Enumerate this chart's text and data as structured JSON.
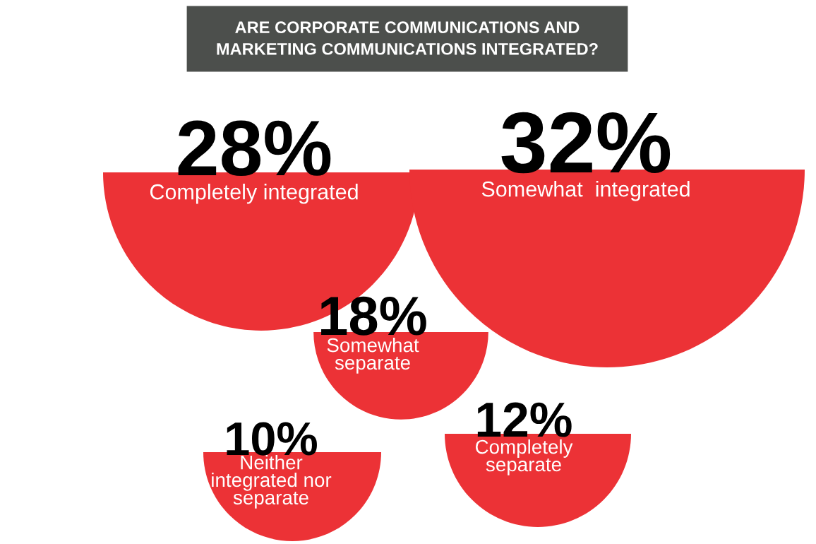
{
  "chart_data": {
    "type": "other",
    "title": "ARE CORPORATE COMMUNICATIONS AND\nMARKETING COMMUNICATIONS INTEGRATED?",
    "categories": [
      "Completely integrated",
      "Somewhat  integrated",
      "Somewhat\nseparate",
      "Neither\nintegrated nor\nseparate",
      "Completely\nseparate"
    ],
    "values": [
      28,
      32,
      18,
      10,
      12
    ],
    "value_labels": [
      "28%",
      "32%",
      "18%",
      "10%",
      "12%"
    ],
    "colors": [
      "#ec3236",
      "#ec3236",
      "#ec3236",
      "#ec3236",
      "#ec3236"
    ]
  }
}
